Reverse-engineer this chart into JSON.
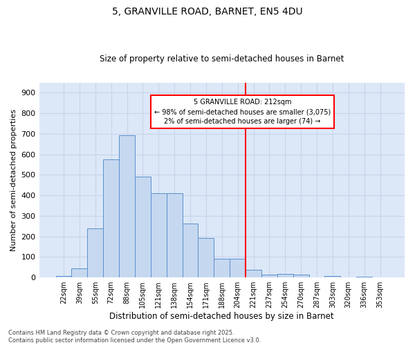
{
  "title": "5, GRANVILLE ROAD, BARNET, EN5 4DU",
  "subtitle": "Size of property relative to semi-detached houses in Barnet",
  "xlabel": "Distribution of semi-detached houses by size in Barnet",
  "ylabel": "Number of semi-detached properties",
  "categories": [
    "22sqm",
    "39sqm",
    "55sqm",
    "72sqm",
    "88sqm",
    "105sqm",
    "121sqm",
    "138sqm",
    "154sqm",
    "171sqm",
    "188sqm",
    "204sqm",
    "221sqm",
    "237sqm",
    "254sqm",
    "270sqm",
    "287sqm",
    "303sqm",
    "320sqm",
    "336sqm",
    "353sqm"
  ],
  "bar_heights": [
    8,
    43,
    238,
    575,
    693,
    493,
    410,
    410,
    263,
    193,
    93,
    93,
    38,
    15,
    18,
    13,
    0,
    8,
    0,
    5,
    0
  ],
  "bar_color": "#c5d8f0",
  "bar_edge_color": "#5b8fcc",
  "grid_color": "#c8d4e8",
  "bg_color": "#dce8f8",
  "annotation_box_text": "5 GRANVILLE ROAD: 212sqm\n← 98% of semi-detached houses are smaller (3,075)\n2% of semi-detached houses are larger (74) →",
  "vline_x_index": 11.5,
  "vline_color": "red",
  "ylim": [
    0,
    950
  ],
  "yticks": [
    0,
    100,
    200,
    300,
    400,
    500,
    600,
    700,
    800,
    900
  ],
  "footer": "Contains HM Land Registry data © Crown copyright and database right 2025.\nContains public sector information licensed under the Open Government Licence v3.0."
}
